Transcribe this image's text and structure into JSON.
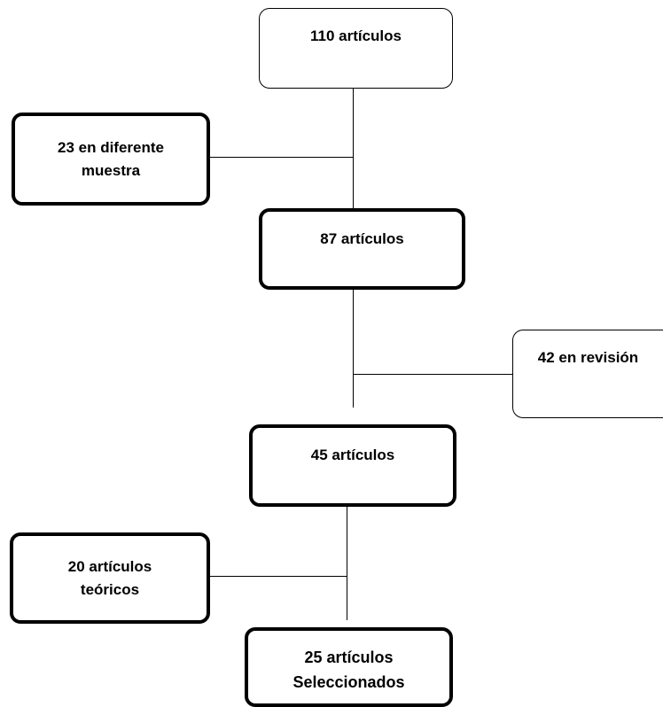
{
  "flow": {
    "stage1": "110 artículos",
    "excluded1": "23 en diferente\nmuestra",
    "stage2": "87 artículos",
    "excluded2": "42 en revisión",
    "stage3": "45 artículos",
    "excluded3": "20 artículos\nteóricos",
    "final": "25 artículos\nSeleccionados"
  },
  "colors": {
    "line": "#000000",
    "box_border": "#000000",
    "background": "#ffffff"
  }
}
